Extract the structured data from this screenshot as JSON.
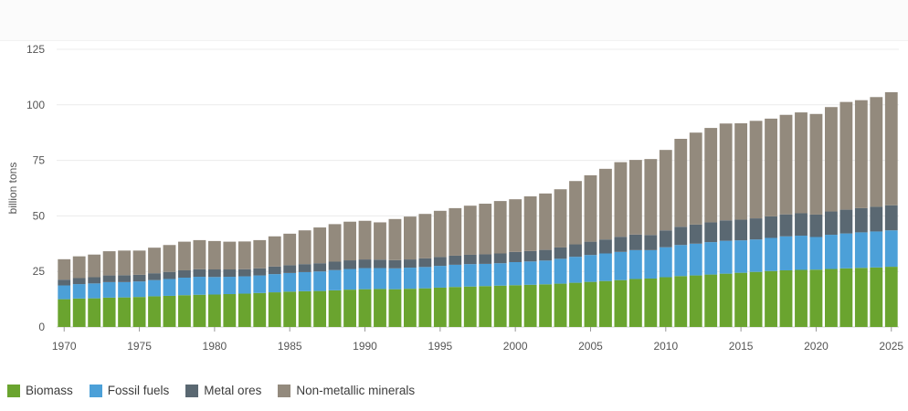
{
  "chart_data": {
    "type": "bar",
    "stacked": true,
    "ylabel": "billion tons",
    "ylim": [
      0,
      125
    ],
    "yticks": [
      0,
      25,
      50,
      75,
      100,
      125
    ],
    "xtick_labels": [
      "1970",
      "1975",
      "1980",
      "1985",
      "1990",
      "1995",
      "2000",
      "2005",
      "2010",
      "2015",
      "2020",
      "2025"
    ],
    "grid": true,
    "legend_position": "bottom-left",
    "categories": [
      1970,
      1971,
      1972,
      1973,
      1974,
      1975,
      1976,
      1977,
      1978,
      1979,
      1980,
      1981,
      1982,
      1983,
      1984,
      1985,
      1986,
      1987,
      1988,
      1989,
      1990,
      1991,
      1992,
      1993,
      1994,
      1995,
      1996,
      1997,
      1998,
      1999,
      2000,
      2001,
      2002,
      2003,
      2004,
      2005,
      2006,
      2007,
      2008,
      2009,
      2010,
      2011,
      2012,
      2013,
      2014,
      2015,
      2016,
      2017,
      2018,
      2019,
      2020,
      2021,
      2022,
      2023,
      2024,
      2025
    ],
    "series": [
      {
        "name": "Biomass",
        "color": "#6aa42f",
        "values": [
          12.5,
          12.8,
          12.9,
          13.2,
          13.3,
          13.5,
          13.8,
          14.0,
          14.3,
          14.5,
          14.6,
          14.8,
          15.0,
          15.3,
          15.6,
          15.9,
          16.1,
          16.2,
          16.5,
          16.8,
          17.0,
          17.1,
          17.0,
          17.2,
          17.4,
          17.7,
          18.0,
          18.2,
          18.4,
          18.6,
          18.8,
          19.0,
          19.2,
          19.5,
          19.9,
          20.3,
          20.7,
          21.1,
          21.6,
          21.8,
          22.4,
          22.9,
          23.2,
          23.6,
          24.0,
          24.4,
          24.8,
          25.2,
          25.5,
          25.7,
          25.8,
          26.1,
          26.4,
          26.6,
          26.8,
          27.1
        ]
      },
      {
        "name": "Fossil fuels",
        "color": "#4ca0d8",
        "values": [
          6.2,
          6.5,
          6.7,
          7.0,
          6.9,
          7.0,
          7.3,
          7.6,
          7.9,
          8.1,
          7.9,
          7.8,
          7.8,
          7.9,
          8.2,
          8.4,
          8.6,
          8.8,
          9.1,
          9.3,
          9.5,
          9.4,
          9.4,
          9.5,
          9.6,
          9.8,
          10.0,
          10.1,
          10.0,
          10.1,
          10.4,
          10.5,
          10.7,
          11.2,
          11.7,
          12.1,
          12.4,
          12.7,
          13.0,
          12.8,
          13.5,
          14.0,
          14.3,
          14.6,
          14.8,
          14.6,
          14.6,
          14.9,
          15.3,
          15.4,
          14.7,
          15.4,
          15.7,
          16.0,
          16.2,
          16.4
        ]
      },
      {
        "name": "Metal ores",
        "color": "#5a6872",
        "values": [
          2.6,
          2.7,
          2.8,
          3.0,
          3.1,
          3.0,
          3.1,
          3.2,
          3.3,
          3.4,
          3.4,
          3.3,
          3.2,
          3.2,
          3.4,
          3.5,
          3.6,
          3.7,
          3.8,
          3.9,
          3.9,
          3.8,
          3.7,
          3.7,
          3.9,
          4.0,
          4.1,
          4.2,
          4.3,
          4.4,
          4.6,
          4.7,
          4.8,
          5.1,
          5.6,
          6.0,
          6.3,
          6.8,
          7.0,
          6.8,
          7.6,
          8.2,
          8.6,
          8.9,
          9.2,
          9.3,
          9.5,
          9.7,
          9.9,
          10.1,
          10.1,
          10.5,
          10.7,
          10.9,
          11.1,
          11.3
        ]
      },
      {
        "name": "Non-metallic minerals",
        "color": "#938a7d",
        "values": [
          9.2,
          9.8,
          10.2,
          10.9,
          11.1,
          10.9,
          11.5,
          12.1,
          12.9,
          13.1,
          12.8,
          12.5,
          12.5,
          12.7,
          13.6,
          14.2,
          15.2,
          16.1,
          16.9,
          17.4,
          17.4,
          16.8,
          18.5,
          19.3,
          20.0,
          20.8,
          21.4,
          22.1,
          22.8,
          23.6,
          23.7,
          24.6,
          25.4,
          26.2,
          28.5,
          29.9,
          31.8,
          33.6,
          33.6,
          34.2,
          36.2,
          39.6,
          41.4,
          42.5,
          43.6,
          43.4,
          43.9,
          44.0,
          44.8,
          45.4,
          45.3,
          47.0,
          48.5,
          48.6,
          49.4,
          50.9
        ]
      }
    ]
  },
  "legend": {
    "items": [
      {
        "label": "Biomass",
        "color": "#6aa42f"
      },
      {
        "label": "Fossil fuels",
        "color": "#4ca0d8"
      },
      {
        "label": "Metal ores",
        "color": "#5a6872"
      },
      {
        "label": "Non-metallic minerals",
        "color": "#938a7d"
      }
    ]
  }
}
